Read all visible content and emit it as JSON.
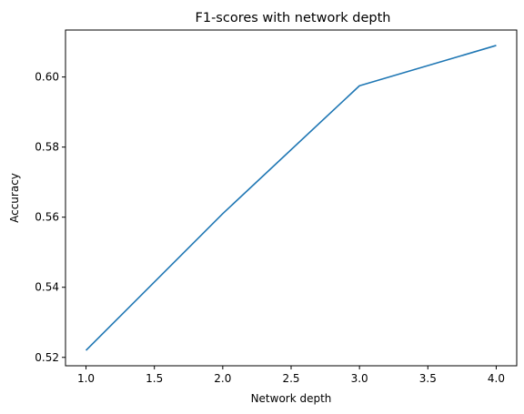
{
  "chart_data": {
    "type": "line",
    "title": "F1-scores with network depth",
    "xlabel": "Network depth",
    "ylabel": "Accuracy",
    "x": [
      1.0,
      2.0,
      3.0,
      4.0
    ],
    "series": [
      {
        "values": [
          0.522,
          0.561,
          0.5975,
          0.609
        ],
        "color": "#1f77b4"
      }
    ],
    "xlim": [
      0.85,
      4.15
    ],
    "ylim": [
      0.5176,
      0.6134
    ],
    "xticks": [
      1.0,
      1.5,
      2.0,
      2.5,
      3.0,
      3.5,
      4.0
    ],
    "xtick_labels": [
      "1.0",
      "1.5",
      "2.0",
      "2.5",
      "3.0",
      "3.5",
      "4.0"
    ],
    "yticks": [
      0.52,
      0.54,
      0.56,
      0.58,
      0.6
    ],
    "ytick_labels": [
      "0.52",
      "0.54",
      "0.56",
      "0.58",
      "0.60"
    ],
    "grid": false,
    "legend": "none"
  }
}
